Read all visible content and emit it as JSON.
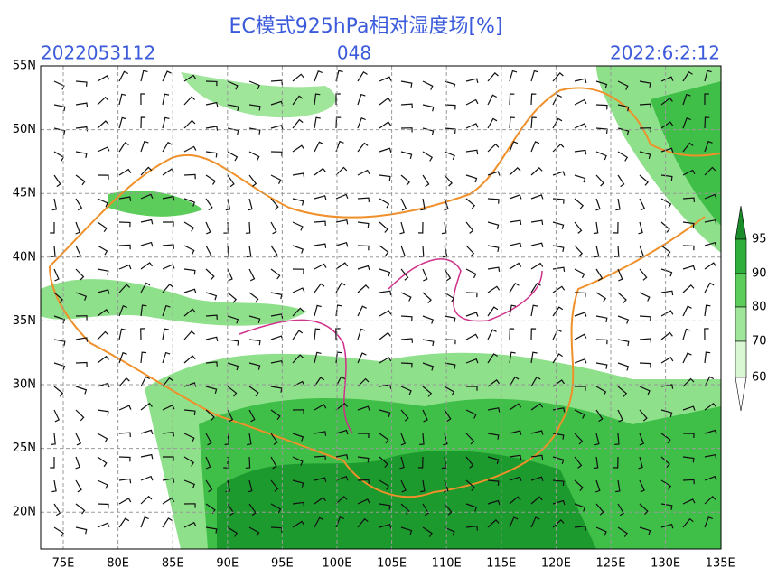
{
  "header": {
    "title": "EC模式925hPa相对湿度场[%]",
    "init_time": "2022053112",
    "forecast_hour": "048",
    "valid_time": "2022:6:2:12"
  },
  "map": {
    "lat_labels": [
      "55N",
      "50N",
      "45N",
      "40N",
      "35N",
      "30N",
      "25N",
      "20N"
    ],
    "lon_labels": [
      "75E",
      "80E",
      "85E",
      "90E",
      "95E",
      "100E",
      "105E",
      "110E",
      "115E",
      "120E",
      "125E",
      "130E",
      "135E"
    ]
  },
  "colorbar": {
    "labels": [
      "95",
      "90",
      "80",
      "70",
      "60"
    ]
  }
}
